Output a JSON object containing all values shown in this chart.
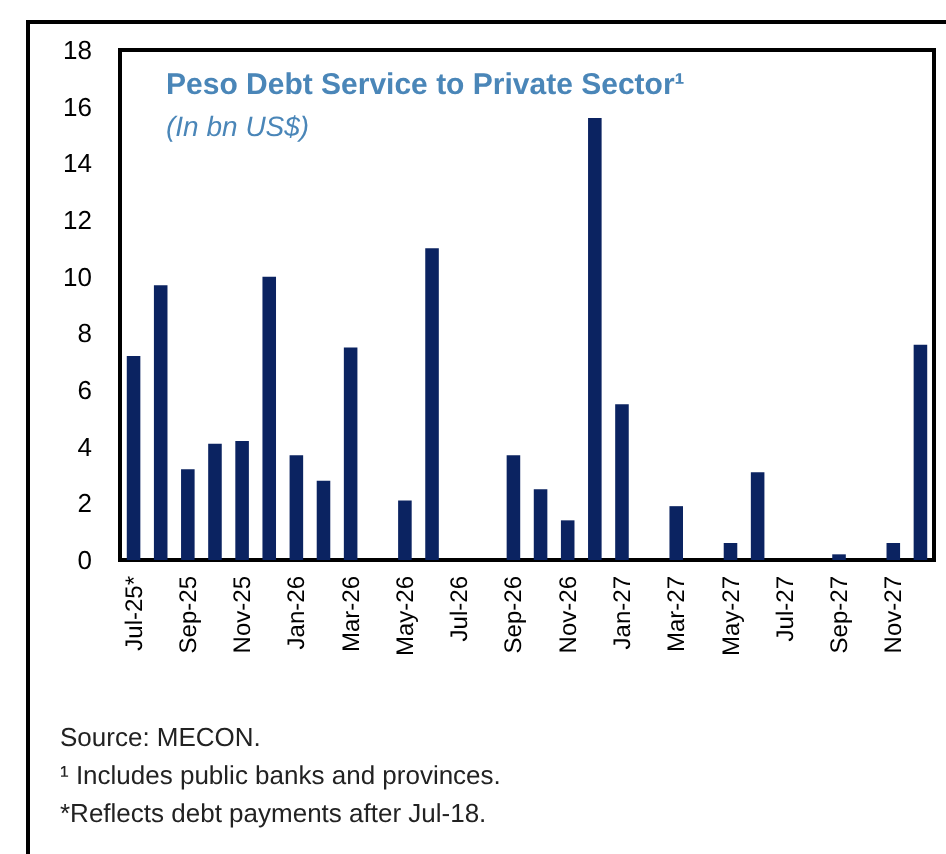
{
  "chart_data": {
    "type": "bar",
    "title": "Peso Debt Service to Private Sector¹",
    "subtitle": "(In bn US$)",
    "categories": [
      "Jul-25*",
      null,
      "Sep-25",
      null,
      "Nov-25",
      null,
      "Jan-26",
      null,
      "Mar-26",
      null,
      "May-26",
      null,
      "Jul-26",
      null,
      "Sep-26",
      null,
      "Nov-26",
      null,
      "Jan-27",
      null,
      "Mar-27",
      null,
      "May-27",
      null,
      "Jul-27",
      null,
      "Sep-27",
      null,
      "Nov-27",
      null
    ],
    "values": [
      7.2,
      9.7,
      3.2,
      4.1,
      4.2,
      10.0,
      3.7,
      2.8,
      7.5,
      0,
      2.1,
      11.0,
      0,
      0,
      3.7,
      2.5,
      1.4,
      15.6,
      5.5,
      0,
      1.9,
      0,
      0.6,
      3.1,
      0,
      0,
      0.2,
      0,
      0.6,
      7.6
    ],
    "color": "#0b2361",
    "ylim": [
      0,
      18
    ],
    "yticks": [
      0,
      2,
      4,
      6,
      8,
      10,
      12,
      14,
      16,
      18
    ],
    "annotations": [
      "Source: MECON.",
      "¹ Includes public banks and provinces.",
      "*Reflects debt payments after Jul-18."
    ]
  }
}
